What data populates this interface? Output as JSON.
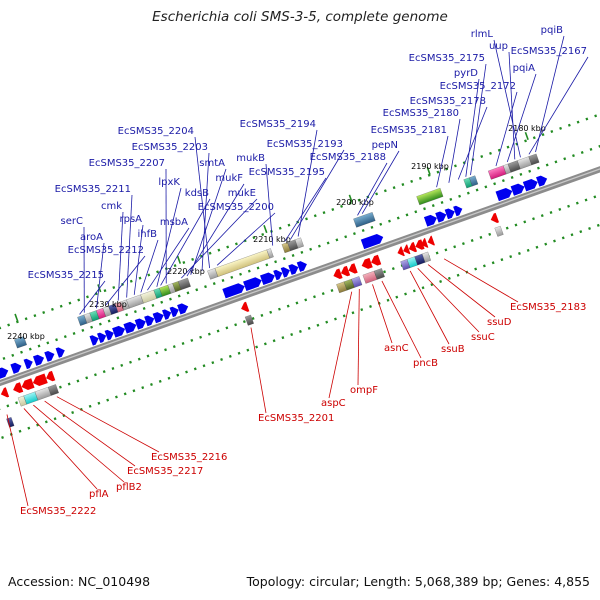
{
  "title": "Escherichia coli SMS-3-5, complete genome",
  "footer": {
    "accession": "Accession: NC_010498",
    "summary": "Topology: circular; Length: 5,068,389 bp; Genes: 4,855"
  },
  "colors": {
    "forward_gene": "#0000ee",
    "reverse_gene": "#ee0000",
    "backbone": "#8c8c8c",
    "top_label": "#1a1aa6",
    "bottom_label": "#cc0000",
    "tick": "#228b22"
  },
  "ticks": [
    "2180 kbp",
    "2190 kbp",
    "2200 kbp",
    "2210 kbp",
    "2220 kbp",
    "2230 kbp",
    "2240 kbp"
  ],
  "forward_labels": [
    "pqiB",
    "rlmL",
    "EcSMS35_2167",
    "uup",
    "pqiA",
    "EcSMS35_2175",
    "pyrD",
    "EcSMS35_2172",
    "EcSMS35_2178",
    "EcSMS35_2180",
    "EcSMS35_2181",
    "EcSMS35_2194",
    "EcSMS35_2193",
    "pepN",
    "EcSMS35_2204",
    "EcSMS35_2203",
    "EcSMS35_2188",
    "EcSMS35_2195",
    "mukB",
    "EcSMS35_2207",
    "smtA",
    "lpxK",
    "mukF",
    "mukE",
    "kdsB",
    "EcSMS35_2211",
    "EcSMS35_2200",
    "cmk",
    "rpsA",
    "serC",
    "msbA",
    "ihfB",
    "aroA",
    "EcSMS35_2212",
    "EcSMS35_2215"
  ],
  "reverse_labels": [
    "EcSMS35_2183",
    "ssuD",
    "ssuC",
    "ssuB",
    "pncB",
    "asnC",
    "ompF",
    "aspC",
    "EcSMS35_2201",
    "EcSMS35_2216",
    "EcSMS35_2217",
    "pflB2",
    "pflA",
    "EcSMS35_2222"
  ]
}
